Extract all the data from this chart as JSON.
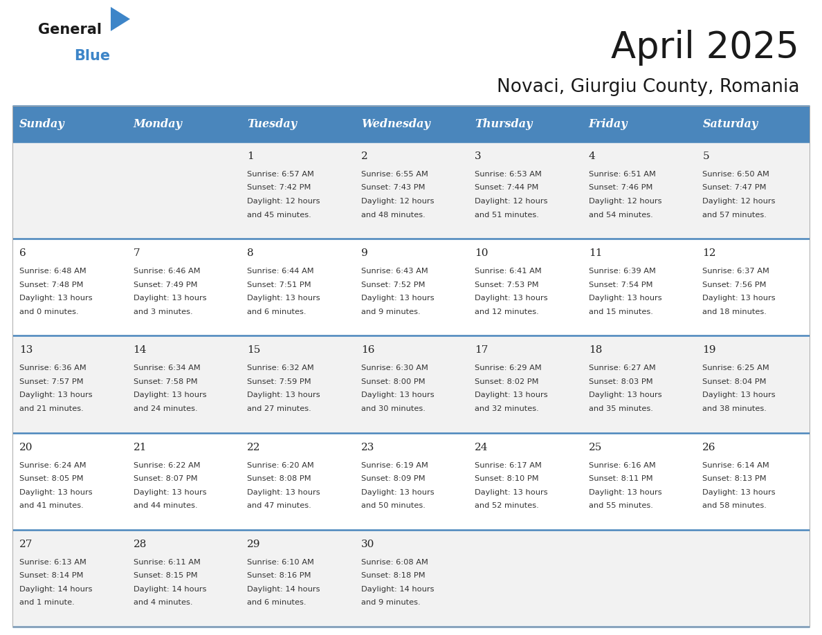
{
  "title": "April 2025",
  "subtitle": "Novaci, Giurgiu County, Romania",
  "header_bg_color": "#4a86bc",
  "header_text_color": "#ffffff",
  "row_bg_light": "#f2f2f2",
  "row_bg_white": "#ffffff",
  "separator_color": "#4a86bc",
  "text_color": "#222222",
  "info_text_color": "#333333",
  "days_of_week": [
    "Sunday",
    "Monday",
    "Tuesday",
    "Wednesday",
    "Thursday",
    "Friday",
    "Saturday"
  ],
  "weeks": [
    [
      {
        "day": "",
        "info": ""
      },
      {
        "day": "",
        "info": ""
      },
      {
        "day": "1",
        "info": "Sunrise: 6:57 AM\nSunset: 7:42 PM\nDaylight: 12 hours\nand 45 minutes."
      },
      {
        "day": "2",
        "info": "Sunrise: 6:55 AM\nSunset: 7:43 PM\nDaylight: 12 hours\nand 48 minutes."
      },
      {
        "day": "3",
        "info": "Sunrise: 6:53 AM\nSunset: 7:44 PM\nDaylight: 12 hours\nand 51 minutes."
      },
      {
        "day": "4",
        "info": "Sunrise: 6:51 AM\nSunset: 7:46 PM\nDaylight: 12 hours\nand 54 minutes."
      },
      {
        "day": "5",
        "info": "Sunrise: 6:50 AM\nSunset: 7:47 PM\nDaylight: 12 hours\nand 57 minutes."
      }
    ],
    [
      {
        "day": "6",
        "info": "Sunrise: 6:48 AM\nSunset: 7:48 PM\nDaylight: 13 hours\nand 0 minutes."
      },
      {
        "day": "7",
        "info": "Sunrise: 6:46 AM\nSunset: 7:49 PM\nDaylight: 13 hours\nand 3 minutes."
      },
      {
        "day": "8",
        "info": "Sunrise: 6:44 AM\nSunset: 7:51 PM\nDaylight: 13 hours\nand 6 minutes."
      },
      {
        "day": "9",
        "info": "Sunrise: 6:43 AM\nSunset: 7:52 PM\nDaylight: 13 hours\nand 9 minutes."
      },
      {
        "day": "10",
        "info": "Sunrise: 6:41 AM\nSunset: 7:53 PM\nDaylight: 13 hours\nand 12 minutes."
      },
      {
        "day": "11",
        "info": "Sunrise: 6:39 AM\nSunset: 7:54 PM\nDaylight: 13 hours\nand 15 minutes."
      },
      {
        "day": "12",
        "info": "Sunrise: 6:37 AM\nSunset: 7:56 PM\nDaylight: 13 hours\nand 18 minutes."
      }
    ],
    [
      {
        "day": "13",
        "info": "Sunrise: 6:36 AM\nSunset: 7:57 PM\nDaylight: 13 hours\nand 21 minutes."
      },
      {
        "day": "14",
        "info": "Sunrise: 6:34 AM\nSunset: 7:58 PM\nDaylight: 13 hours\nand 24 minutes."
      },
      {
        "day": "15",
        "info": "Sunrise: 6:32 AM\nSunset: 7:59 PM\nDaylight: 13 hours\nand 27 minutes."
      },
      {
        "day": "16",
        "info": "Sunrise: 6:30 AM\nSunset: 8:00 PM\nDaylight: 13 hours\nand 30 minutes."
      },
      {
        "day": "17",
        "info": "Sunrise: 6:29 AM\nSunset: 8:02 PM\nDaylight: 13 hours\nand 32 minutes."
      },
      {
        "day": "18",
        "info": "Sunrise: 6:27 AM\nSunset: 8:03 PM\nDaylight: 13 hours\nand 35 minutes."
      },
      {
        "day": "19",
        "info": "Sunrise: 6:25 AM\nSunset: 8:04 PM\nDaylight: 13 hours\nand 38 minutes."
      }
    ],
    [
      {
        "day": "20",
        "info": "Sunrise: 6:24 AM\nSunset: 8:05 PM\nDaylight: 13 hours\nand 41 minutes."
      },
      {
        "day": "21",
        "info": "Sunrise: 6:22 AM\nSunset: 8:07 PM\nDaylight: 13 hours\nand 44 minutes."
      },
      {
        "day": "22",
        "info": "Sunrise: 6:20 AM\nSunset: 8:08 PM\nDaylight: 13 hours\nand 47 minutes."
      },
      {
        "day": "23",
        "info": "Sunrise: 6:19 AM\nSunset: 8:09 PM\nDaylight: 13 hours\nand 50 minutes."
      },
      {
        "day": "24",
        "info": "Sunrise: 6:17 AM\nSunset: 8:10 PM\nDaylight: 13 hours\nand 52 minutes."
      },
      {
        "day": "25",
        "info": "Sunrise: 6:16 AM\nSunset: 8:11 PM\nDaylight: 13 hours\nand 55 minutes."
      },
      {
        "day": "26",
        "info": "Sunrise: 6:14 AM\nSunset: 8:13 PM\nDaylight: 13 hours\nand 58 minutes."
      }
    ],
    [
      {
        "day": "27",
        "info": "Sunrise: 6:13 AM\nSunset: 8:14 PM\nDaylight: 14 hours\nand 1 minute."
      },
      {
        "day": "28",
        "info": "Sunrise: 6:11 AM\nSunset: 8:15 PM\nDaylight: 14 hours\nand 4 minutes."
      },
      {
        "day": "29",
        "info": "Sunrise: 6:10 AM\nSunset: 8:16 PM\nDaylight: 14 hours\nand 6 minutes."
      },
      {
        "day": "30",
        "info": "Sunrise: 6:08 AM\nSunset: 8:18 PM\nDaylight: 14 hours\nand 9 minutes."
      },
      {
        "day": "",
        "info": ""
      },
      {
        "day": "",
        "info": ""
      },
      {
        "day": "",
        "info": ""
      }
    ]
  ]
}
